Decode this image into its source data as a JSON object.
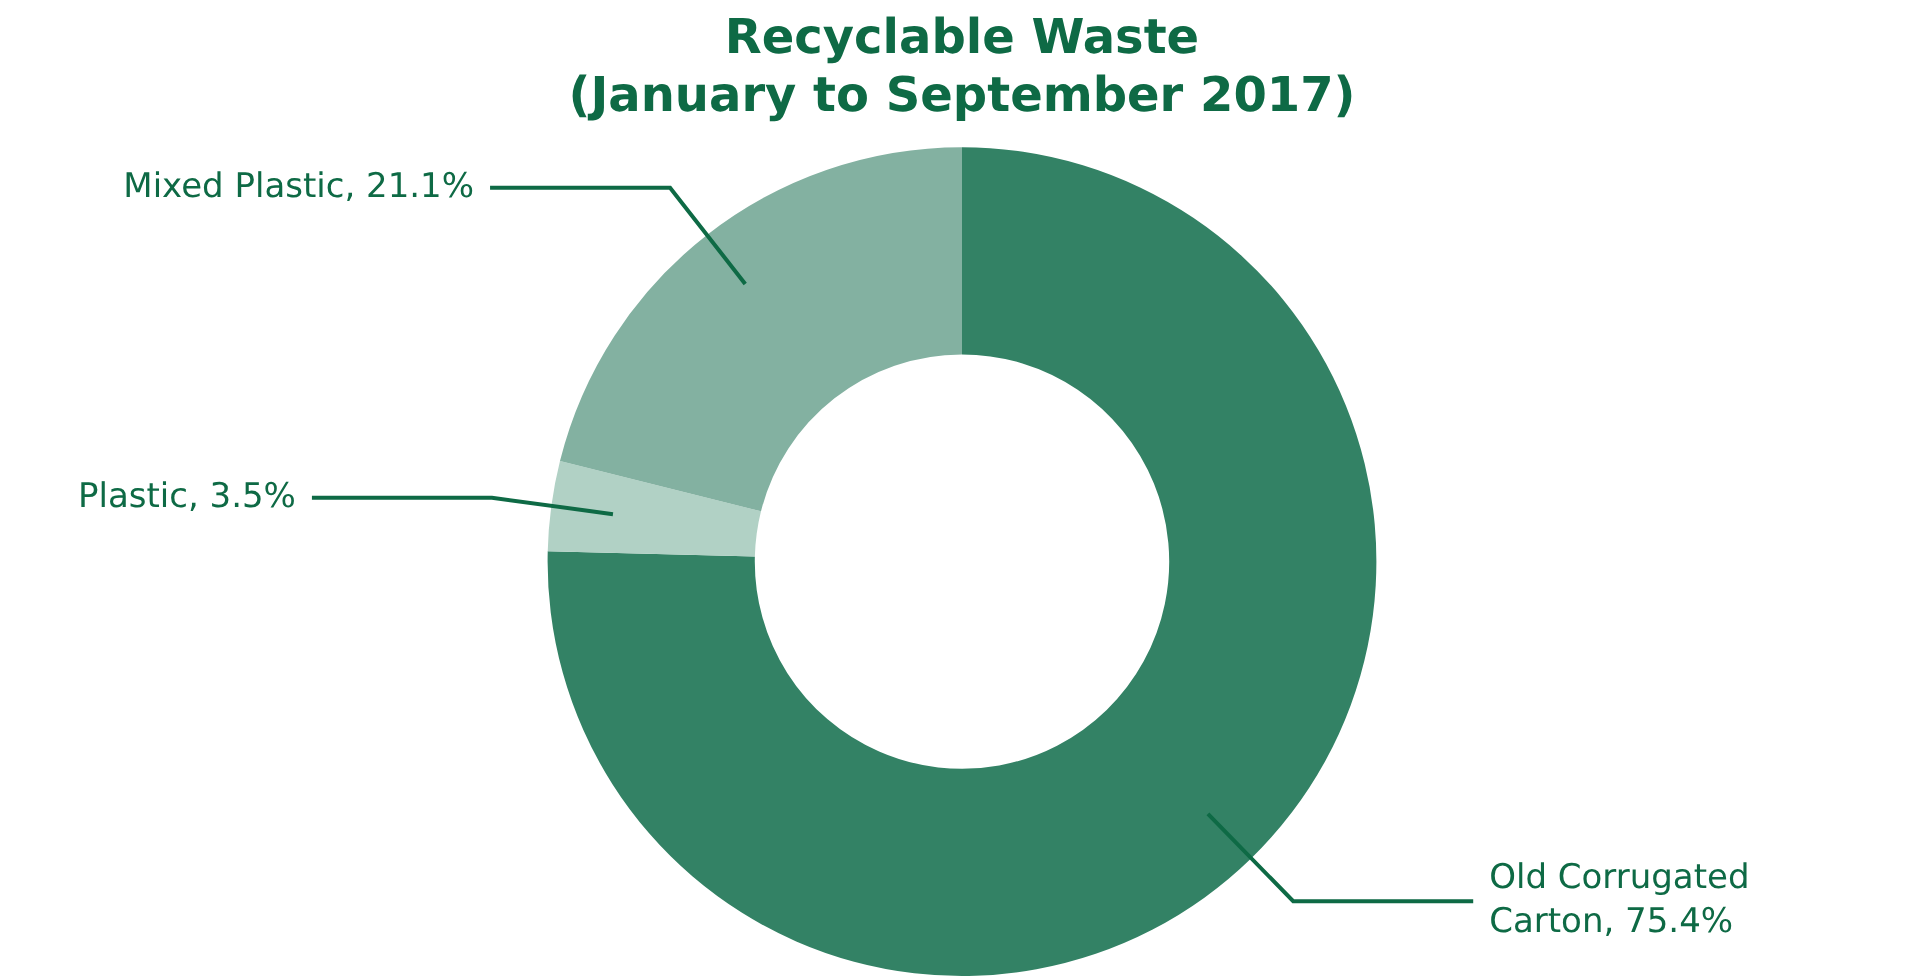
{
  "chart_data": {
    "type": "donut",
    "title": "Recyclable Waste\n(January to September 2017)",
    "categories": [
      "Old Corrugated Carton",
      "Plastic",
      "Mixed Plastic"
    ],
    "values": [
      75.4,
      3.5,
      21.1
    ],
    "colors": [
      "#338265",
      "#b1d1c5",
      "#83b1a1"
    ],
    "value_labels": [
      ", 75.4%",
      ", 3.5%",
      ", 21.1%"
    ],
    "legend": false
  }
}
